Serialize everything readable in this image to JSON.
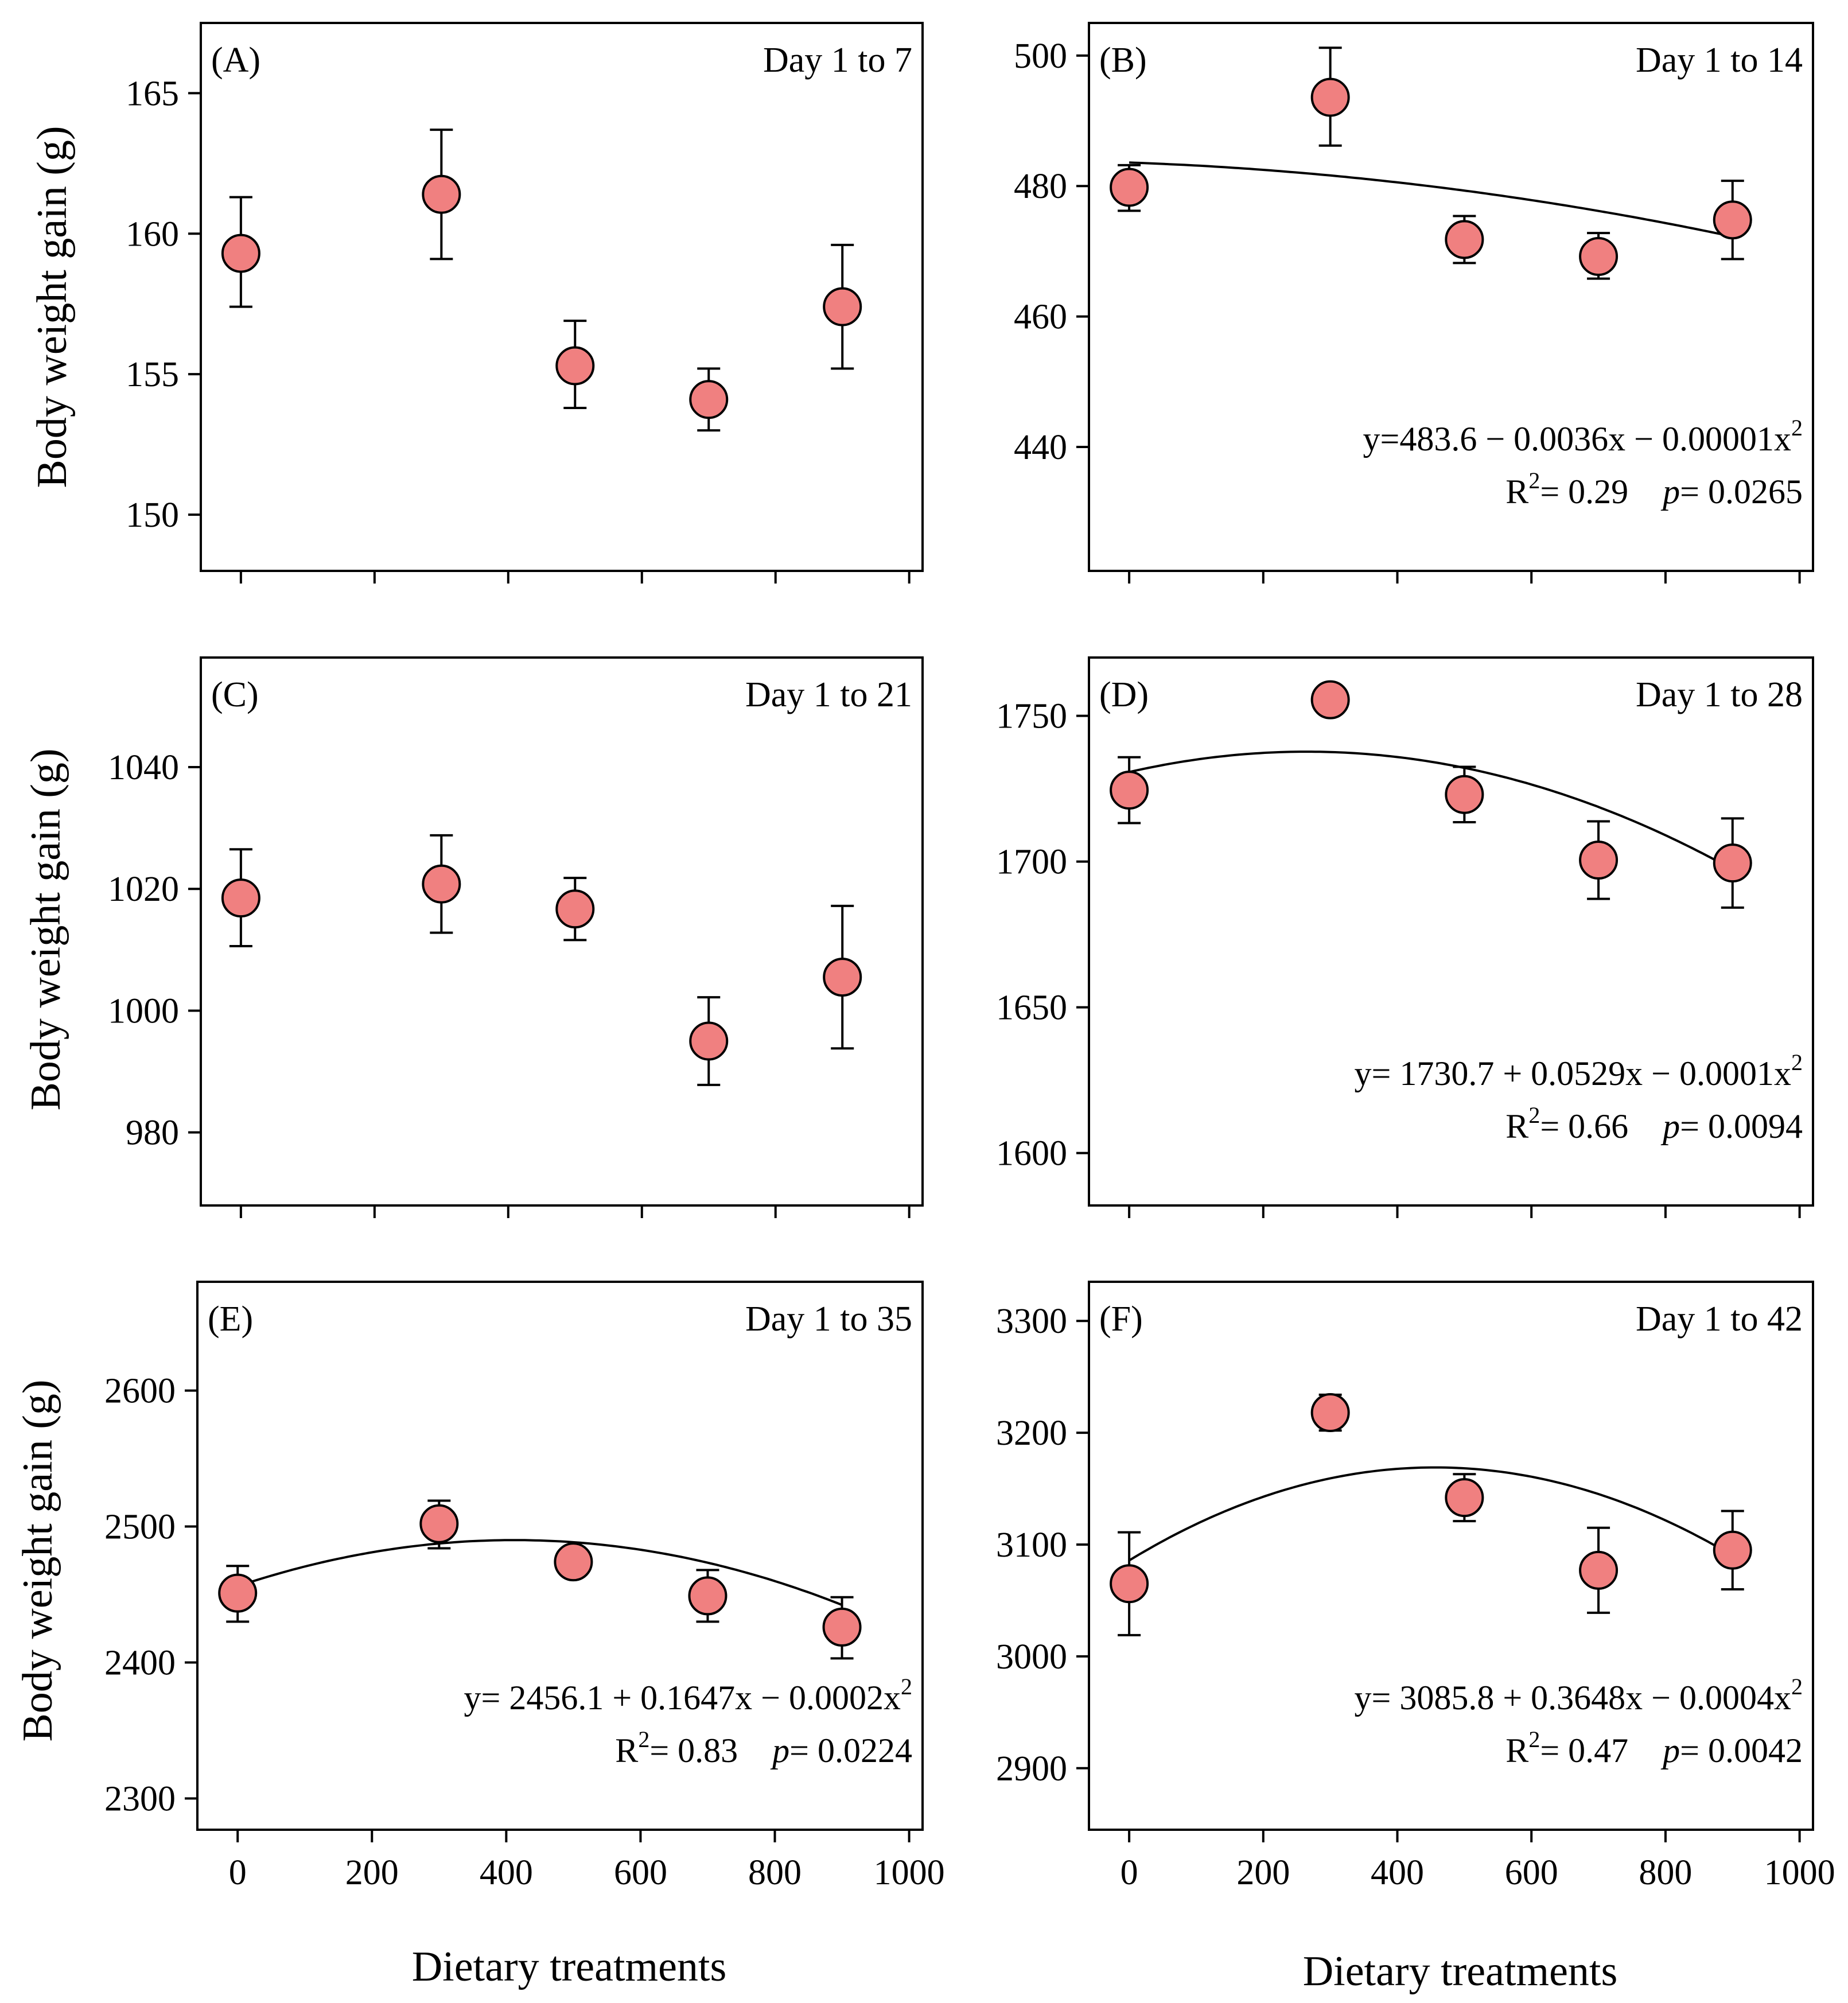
{
  "figure": {
    "y_axis_title": "Body weight gain (g)",
    "x_axis_title": "Dietary treatments",
    "x_ticks": [
      0,
      200,
      400,
      600,
      800,
      1000
    ],
    "marker_color": "#f08080"
  },
  "chart_data": [
    {
      "type": "scatter",
      "panel": "(A)",
      "title": "Day 1 to 7",
      "x": [
        0,
        300,
        500,
        700,
        900
      ],
      "y": [
        159.3,
        161.4,
        155.3,
        154.1,
        157.4
      ],
      "err_upper": [
        161.3,
        163.7,
        156.9,
        155.2,
        159.6
      ],
      "err_lower": [
        157.4,
        159.1,
        153.8,
        153.0,
        155.2
      ],
      "yticks": [
        150,
        155,
        160,
        165
      ],
      "ylim": [
        148,
        167.5
      ],
      "xlim": [
        -60,
        1020
      ],
      "fit": null,
      "equation": null,
      "r2_text": null,
      "p_text": null,
      "show_x_tick_labels": false
    },
    {
      "type": "scatter",
      "panel": "(B)",
      "title": "Day 1 to 14",
      "x": [
        0,
        300,
        500,
        700,
        900
      ],
      "y": [
        479.8,
        493.6,
        471.8,
        469.2,
        474.8
      ],
      "err_upper": [
        483.2,
        501.2,
        475.4,
        472.8,
        480.8
      ],
      "err_lower": [
        476.2,
        486.2,
        468.2,
        465.8,
        468.8
      ],
      "yticks": [
        440,
        460,
        480,
        500
      ],
      "ylim": [
        421,
        505
      ],
      "xlim": [
        -60,
        1020
      ],
      "fit": {
        "a": 483.6,
        "b": -0.0036,
        "c": -1e-05
      },
      "equation": "y=483.6 − 0.0036x − 0.00001x",
      "r2_text": "= 0.29",
      "p_text": "= 0.0265",
      "show_x_tick_labels": false
    },
    {
      "type": "scatter",
      "panel": "(C)",
      "title": "Day 1 to 21",
      "x": [
        0,
        300,
        500,
        700,
        900
      ],
      "y": [
        1018.5,
        1020.8,
        1016.7,
        995.0,
        1005.5
      ],
      "err_upper": [
        1026.5,
        1028.8,
        1021.8,
        1002.2,
        1017.2
      ],
      "err_lower": [
        1010.6,
        1012.8,
        1011.6,
        987.8,
        993.8
      ],
      "yticks": [
        980,
        1000,
        1020,
        1040
      ],
      "ylim": [
        968,
        1058
      ],
      "xlim": [
        -60,
        1020
      ],
      "fit": null,
      "equation": null,
      "r2_text": null,
      "p_text": null,
      "show_x_tick_labels": false
    },
    {
      "type": "scatter",
      "panel": "(D)",
      "title": "Day 1 to 28",
      "x": [
        0,
        300,
        500,
        700,
        900
      ],
      "y": [
        1724.5,
        1755.5,
        1723.0,
        1700.5,
        1699.5
      ],
      "err_upper": [
        1735.8,
        1758.0,
        1732.5,
        1713.8,
        1714.8
      ],
      "err_lower": [
        1713.2,
        1753.0,
        1713.5,
        1687.2,
        1684.2
      ],
      "yticks": [
        1600,
        1650,
        1700,
        1750
      ],
      "ylim": [
        1582,
        1770
      ],
      "xlim": [
        -60,
        1020
      ],
      "fit": {
        "a": 1730.7,
        "b": 0.0529,
        "c": -0.0001
      },
      "equation": "y= 1730.7 + 0.0529x − 0.0001x",
      "r2_text": "= 0.66",
      "p_text": "= 0.0094",
      "show_x_tick_labels": false
    },
    {
      "type": "scatter",
      "panel": "(E)",
      "title": "Day 1 to 35",
      "x": [
        0,
        300,
        500,
        700,
        900
      ],
      "y": [
        2451,
        2502,
        2474,
        2449,
        2426
      ],
      "err_upper": [
        2471,
        2519,
        2474,
        2468,
        2448
      ],
      "err_lower": [
        2430,
        2484,
        2474,
        2430,
        2403
      ],
      "yticks": [
        2300,
        2400,
        2500,
        2600
      ],
      "ylim": [
        2277,
        2680
      ],
      "xlim": [
        -60,
        1020
      ],
      "fit": {
        "a": 2456.1,
        "b": 0.1647,
        "c": -0.0002
      },
      "equation": "y= 2456.1 + 0.1647x − 0.0002x",
      "r2_text": "= 0.83",
      "p_text": "= 0.0224",
      "show_x_tick_labels": true
    },
    {
      "type": "scatter",
      "panel": "(F)",
      "title": "Day 1 to 42",
      "x": [
        0,
        300,
        500,
        700,
        900
      ],
      "y": [
        3065,
        3218,
        3142,
        3077,
        3095
      ],
      "err_upper": [
        3111,
        3234,
        3163,
        3115,
        3130
      ],
      "err_lower": [
        3019,
        3202,
        3121,
        3039,
        3060
      ],
      "yticks": [
        2900,
        3000,
        3100,
        3200,
        3300
      ],
      "ylim": [
        2845,
        3335
      ],
      "xlim": [
        -60,
        1020
      ],
      "fit": {
        "a": 3085.8,
        "b": 0.3648,
        "c": -0.0004
      },
      "equation": "y= 3085.8 + 0.3648x − 0.0004x",
      "r2_text": "= 0.47",
      "p_text": "= 0.0042",
      "show_x_tick_labels": true
    }
  ],
  "superscripts": {
    "squared": "2",
    "r_letter": "R",
    "p_letter": "p"
  }
}
